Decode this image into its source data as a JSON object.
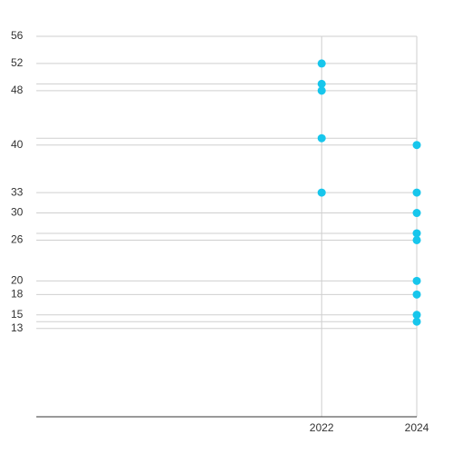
{
  "chart_data": {
    "type": "scatter",
    "x": [
      2022,
      2022,
      2022,
      2022,
      2022,
      2024,
      2024,
      2024,
      2024,
      2024,
      2024,
      2024,
      2024,
      2024
    ],
    "values": [
      52,
      49,
      48,
      41,
      33,
      40,
      33,
      30,
      27,
      26,
      20,
      18,
      15,
      14
    ],
    "color": "#17c6ec",
    "xlim": [
      2016,
      2024
    ],
    "xticks": [
      2022,
      2024
    ],
    "ylim": [
      0,
      56
    ],
    "yticks": [
      13,
      15,
      18,
      20,
      26,
      30,
      33,
      40,
      48,
      52,
      56
    ],
    "yminor": [
      14,
      27,
      41,
      49
    ],
    "grid": true
  }
}
